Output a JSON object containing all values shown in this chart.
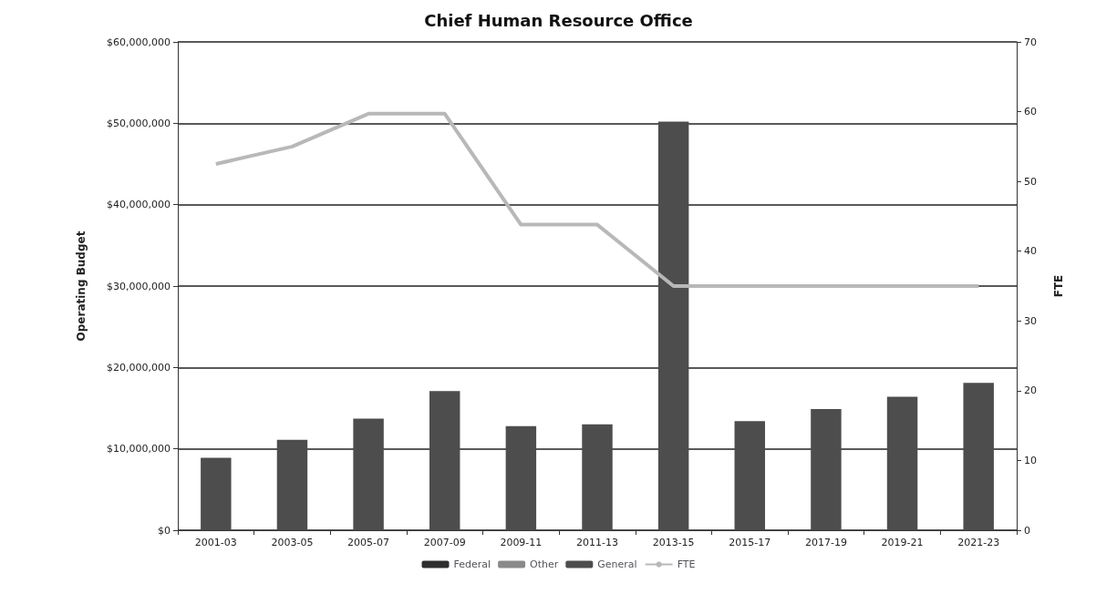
{
  "chart_data": {
    "type": "bar",
    "title": "Chief Human Resource Office",
    "ylabel": "Operating Budget",
    "y2label": "FTE",
    "categories": [
      "2001-03",
      "2003-05",
      "2005-07",
      "2007-09",
      "2009-11",
      "2011-13",
      "2013-15",
      "2015-17",
      "2017-19",
      "2019-21",
      "2021-23"
    ],
    "stacked": true,
    "series": [
      {
        "name": "Federal",
        "color": "#2e2e2e",
        "values": [
          null,
          null,
          null,
          null,
          null,
          null,
          null,
          null,
          null,
          null,
          null
        ]
      },
      {
        "name": "Other",
        "color": "#8a8a8a",
        "values": [
          null,
          null,
          null,
          null,
          null,
          null,
          null,
          null,
          null,
          null,
          null
        ]
      },
      {
        "name": "General",
        "color": "#4d4d4d",
        "values": [
          8900000,
          11100000,
          13700000,
          17100000,
          12800000,
          13000000,
          50200000,
          13400000,
          14900000,
          16400000,
          18100000
        ]
      },
      {
        "name": "FTE",
        "type": "line",
        "axis": "y2",
        "color": "#b8b8b8",
        "values": [
          52.5,
          55,
          59.7,
          59.7,
          43.8,
          43.8,
          35,
          35,
          35,
          35,
          35
        ]
      }
    ],
    "ylim": [
      0,
      60000000
    ],
    "yticks": [
      {
        "value": 0,
        "label": "$0"
      },
      {
        "value": 10000000,
        "label": "$10,000,000"
      },
      {
        "value": 20000000,
        "label": "$20,000,000"
      },
      {
        "value": 30000000,
        "label": "$30,000,000"
      },
      {
        "value": 40000000,
        "label": "$40,000,000"
      },
      {
        "value": 50000000,
        "label": "$50,000,000"
      },
      {
        "value": 60000000,
        "label": "$60,000,000"
      }
    ],
    "y2lim": [
      0,
      70
    ],
    "y2ticks": [
      0,
      10,
      20,
      30,
      40,
      50,
      60,
      70
    ],
    "grid": "y",
    "legend": "bottom",
    "line_style": "solid"
  }
}
